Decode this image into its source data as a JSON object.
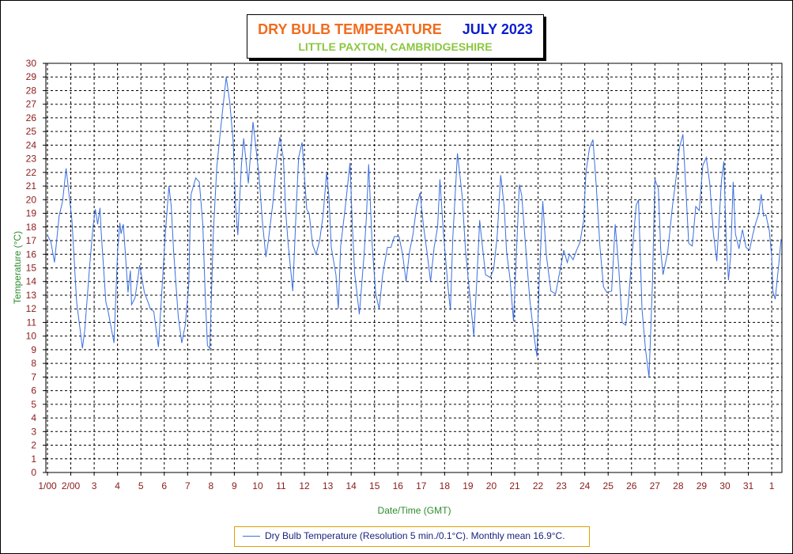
{
  "title": {
    "line1_left": "DRY BULB TEMPERATURE",
    "line1_right": "JULY 2023",
    "line2": "LITTLE PAXTON, CAMBRIDGESHIRE"
  },
  "colors": {
    "title_left": "#f26b1d",
    "title_right": "#0a1ecf",
    "subtitle": "#8cc63f",
    "series": "#3b6fe0",
    "ticks": "#8b1a1a",
    "axis_labels": "#2e8b2e"
  },
  "legend": {
    "text": "Dry Bulb Temperature (Resolution 5 min./0.1°C). Monthly mean 16.9°C."
  },
  "chart_data": {
    "type": "line",
    "xlabel": "Date/Time (GMT)",
    "ylabel": "Temperature (°C)",
    "ylim": [
      0,
      30
    ],
    "xlim": [
      0,
      31.4
    ],
    "grid": true,
    "legend_position": "bottom-center",
    "y_ticks": [
      "0",
      "1",
      "2",
      "3",
      "4",
      "5",
      "6",
      "7",
      "8",
      "9",
      "10",
      "11",
      "12",
      "13",
      "14",
      "15",
      "16",
      "17",
      "18",
      "19",
      "20",
      "21",
      "22",
      "23",
      "24",
      "25",
      "26",
      "27",
      "28",
      "29",
      "30"
    ],
    "x_tick_labels": [
      "1/00",
      "2/00",
      "3",
      "4",
      "5",
      "6",
      "7",
      "8",
      "9",
      "10",
      "11",
      "12",
      "13",
      "14",
      "15",
      "16",
      "17",
      "18",
      "19",
      "20",
      "21",
      "22",
      "23",
      "24",
      "25",
      "26",
      "27",
      "28",
      "29",
      "30",
      "31",
      "1"
    ],
    "series": [
      {
        "name": "Dry Bulb Temperature (Resolution 5 min./0.1°C). Monthly mean 16.9°C.",
        "x": [
          0.0,
          0.15,
          0.3,
          0.5,
          0.65,
          0.8,
          1.05,
          1.25,
          1.45,
          1.5,
          1.6,
          1.8,
          1.95,
          2.05,
          2.15,
          2.25,
          2.3,
          2.5,
          2.6,
          2.85,
          3.0,
          3.1,
          3.15,
          3.25,
          3.45,
          3.55,
          3.6,
          3.75,
          3.85,
          3.95,
          4.15,
          4.35,
          4.4,
          4.55,
          4.75,
          4.95,
          5.05,
          5.2,
          5.3,
          5.4,
          5.6,
          5.75,
          5.9,
          6.05,
          6.1,
          6.15,
          6.35,
          6.5,
          6.65,
          6.75,
          6.85,
          6.95,
          7.1,
          7.25,
          7.4,
          7.65,
          7.8,
          7.95,
          8.05,
          8.15,
          8.3,
          8.4,
          8.6,
          8.8,
          9.05,
          9.2,
          9.35,
          9.45,
          9.65,
          9.8,
          9.95,
          10.1,
          10.2,
          10.3,
          10.5,
          10.65,
          10.75,
          10.9,
          11.1,
          11.2,
          11.35,
          11.5,
          11.65,
          11.8,
          11.95,
          12.05,
          12.15,
          12.35,
          12.45,
          12.55,
          12.75,
          12.95,
          13.05,
          13.15,
          13.35,
          13.55,
          13.65,
          13.75,
          13.9,
          14.05,
          14.2,
          14.35,
          14.55,
          14.7,
          14.85,
          15.05,
          15.2,
          15.35,
          15.5,
          15.65,
          15.8,
          15.95,
          16.1,
          16.25,
          16.4,
          16.55,
          16.7,
          16.8,
          16.95,
          17.15,
          17.25,
          17.35,
          17.55,
          17.75,
          17.9,
          18.05,
          18.25,
          18.4,
          18.5,
          18.6,
          18.75,
          18.95,
          19.1,
          19.25,
          19.4,
          19.55,
          19.65,
          19.8,
          19.95,
          20.1,
          20.2,
          20.3,
          20.5,
          20.65,
          20.8,
          20.95,
          21.05,
          21.2,
          21.35,
          21.55,
          21.75,
          21.95,
          22.1,
          22.25,
          22.35,
          22.5,
          22.65,
          22.8,
          22.95,
          23.05,
          23.2,
          23.35,
          23.5,
          23.65,
          23.8,
          23.95,
          24.15,
          24.3,
          24.45,
          24.6,
          24.75,
          24.85,
          25.05,
          25.2,
          25.3,
          25.45,
          25.6,
          25.75,
          25.9,
          26.0,
          26.15,
          26.25,
          26.35,
          26.55,
          26.75,
          26.9,
          27.05,
          27.2,
          27.35,
          27.45,
          27.6,
          27.75,
          27.9,
          28.05,
          28.2,
          28.35,
          28.5,
          28.65,
          28.75,
          28.85,
          28.95,
          29.05,
          29.15,
          29.25,
          29.35,
          29.45,
          29.6,
          29.75,
          29.9,
          30.05,
          30.2,
          30.3,
          30.45,
          30.55,
          30.65,
          30.75,
          30.9,
          31.0,
          31.05,
          31.15,
          31.3,
          31.4
        ],
        "y": [
          17.4,
          16.9,
          15.4,
          18.8,
          19.9,
          22.3,
          18.5,
          12.5,
          9.8,
          9.1,
          10.5,
          15.0,
          18.0,
          19.3,
          18.2,
          19.4,
          17.6,
          12.5,
          11.8,
          9.5,
          16.2,
          18.3,
          17.5,
          18.2,
          13.2,
          14.8,
          12.3,
          12.8,
          14.0,
          15.2,
          13.2,
          12.3,
          12.0,
          11.8,
          9.2,
          14.8,
          17.6,
          21.0,
          19.5,
          16.2,
          11.4,
          9.5,
          10.8,
          13.8,
          17.8,
          20.4,
          21.6,
          21.3,
          18.2,
          13.1,
          9.3,
          9.1,
          17.5,
          22.4,
          25.0,
          29.0,
          27.2,
          24.3,
          19.6,
          17.4,
          22.5,
          24.5,
          21.2,
          25.7,
          21.9,
          18.4,
          15.8,
          16.9,
          19.8,
          22.8,
          24.6,
          23.0,
          19.1,
          16.8,
          13.3,
          19.4,
          23.1,
          24.2,
          19.3,
          19.0,
          16.7,
          16.0,
          17.0,
          18.9,
          22.0,
          20.2,
          16.5,
          14.5,
          12.0,
          16.6,
          19.5,
          22.7,
          18.2,
          14.6,
          11.6,
          15.9,
          18.7,
          22.6,
          16.7,
          13.1,
          12.0,
          14.5,
          16.5,
          16.5,
          17.3,
          17.3,
          16.0,
          14.0,
          16.2,
          17.5,
          19.5,
          20.5,
          18.0,
          16.1,
          14.0,
          16.5,
          18.0,
          21.5,
          17.5,
          13.5,
          11.9,
          17.2,
          23.4,
          20.3,
          16.2,
          13.5,
          10.0,
          14.8,
          18.5,
          16.9,
          14.5,
          14.3,
          14.9,
          17.3,
          21.8,
          19.5,
          16.2,
          14.2,
          11.1,
          17.2,
          21.1,
          20.3,
          15.8,
          12.6,
          10.4,
          8.5,
          14.0,
          19.9,
          16.0,
          13.3,
          13.1,
          14.9,
          16.3,
          15.4,
          16.0,
          15.6,
          16.3,
          16.9,
          18.5,
          22.0,
          23.8,
          24.4,
          20.8,
          16.5,
          13.6,
          13.2,
          13.3,
          18.2,
          15.1,
          11.0,
          10.8,
          12.2,
          16.5,
          19.6,
          20.0,
          12.0,
          9.0,
          7.0,
          14.0,
          21.5,
          20.8,
          16.3,
          14.5,
          16.2,
          19.5,
          21.5,
          23.8,
          24.8,
          20.0,
          16.8,
          16.6,
          19.5,
          19.2,
          22.5,
          23.1,
          21.2,
          17.6,
          15.5,
          18.5,
          21.4,
          22.8,
          17.2,
          14.1,
          16.0,
          21.3,
          17.5,
          16.4,
          17.8,
          16.5,
          16.3,
          17.5,
          18.2,
          19.0,
          20.4,
          18.8,
          18.9,
          17.7,
          15.8,
          13.3,
          12.7,
          15.2,
          17.1
        ]
      }
    ]
  }
}
